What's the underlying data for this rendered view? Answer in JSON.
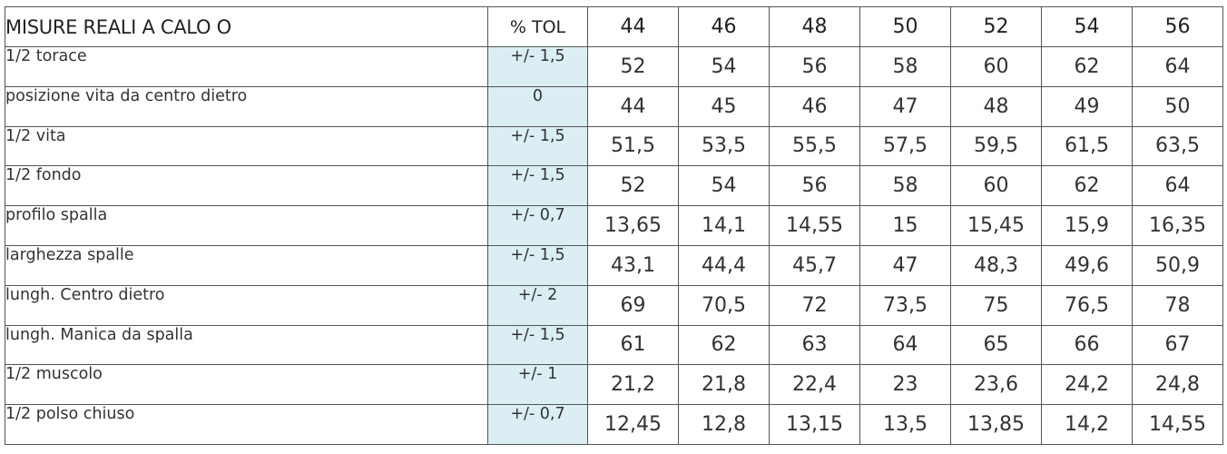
{
  "table": {
    "title": "MISURE REALI A CALO O",
    "tolerance_header": "% TOL",
    "sizes": [
      "44",
      "46",
      "48",
      "50",
      "52",
      "54",
      "56"
    ],
    "rows": [
      {
        "label": "1/2 torace",
        "tol": "+/- 1,5",
        "values": [
          "52",
          "54",
          "56",
          "58",
          "60",
          "62",
          "64"
        ]
      },
      {
        "label": "posizione vita da centro dietro",
        "tol": "0",
        "values": [
          "44",
          "45",
          "46",
          "47",
          "48",
          "49",
          "50"
        ]
      },
      {
        "label": "1/2 vita",
        "tol": "+/- 1,5",
        "values": [
          "51,5",
          "53,5",
          "55,5",
          "57,5",
          "59,5",
          "61,5",
          "63,5"
        ]
      },
      {
        "label": "1/2 fondo",
        "tol": "+/- 1,5",
        "values": [
          "52",
          "54",
          "56",
          "58",
          "60",
          "62",
          "64"
        ]
      },
      {
        "label": "profilo spalla",
        "tol": "+/- 0,7",
        "values": [
          "13,65",
          "14,1",
          "14,55",
          "15",
          "15,45",
          "15,9",
          "16,35"
        ]
      },
      {
        "label": "larghezza spalle",
        "tol": "+/- 1,5",
        "values": [
          "43,1",
          "44,4",
          "45,7",
          "47",
          "48,3",
          "49,6",
          "50,9"
        ]
      },
      {
        "label": "lungh. Centro dietro",
        "tol": "+/- 2",
        "values": [
          "69",
          "70,5",
          "72",
          "73,5",
          "75",
          "76,5",
          "78"
        ]
      },
      {
        "label": "lungh. Manica da spalla",
        "tol": "+/- 1,5",
        "values": [
          "61",
          "62",
          "63",
          "64",
          "65",
          "66",
          "67"
        ]
      },
      {
        "label": "1/2 muscolo",
        "tol": "+/- 1",
        "values": [
          "21,2",
          "21,8",
          "22,4",
          "23",
          "23,6",
          "24,2",
          "24,8"
        ]
      },
      {
        "label": "1/2 polso chiuso",
        "tol": "+/- 0,7",
        "values": [
          "12,45",
          "12,8",
          "13,15",
          "13,5",
          "13,85",
          "14,2",
          "14,55"
        ]
      }
    ],
    "tolerance_fill": "#daeef3"
  }
}
